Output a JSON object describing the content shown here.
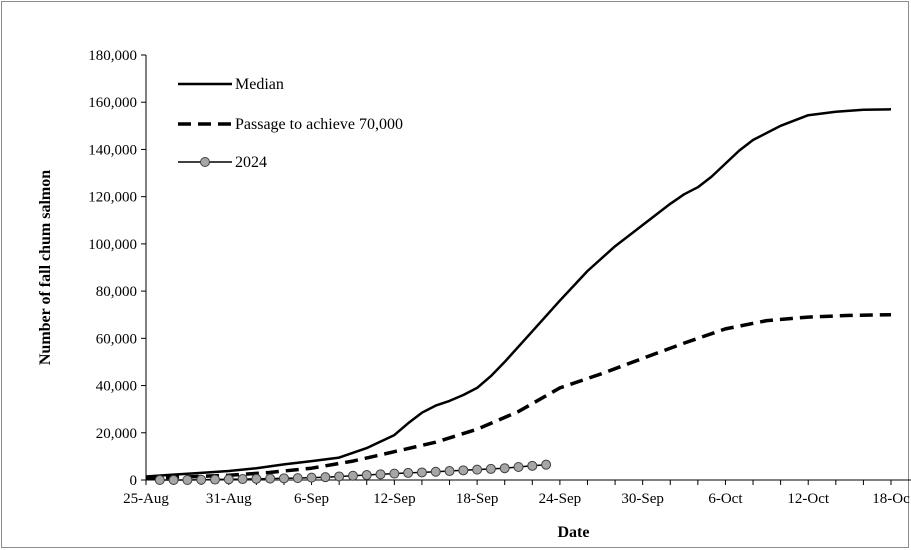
{
  "chart_data": {
    "type": "line",
    "title": "",
    "xlabel": "Date",
    "ylabel": "Number of fall chum salmon",
    "ylim": [
      0,
      180000
    ],
    "xlim": [
      "2024-08-25",
      "2024-10-18"
    ],
    "grid": false,
    "legend_position": "top-left",
    "x_ticks": [
      {
        "date": "2024-08-25",
        "label": "25-Aug"
      },
      {
        "date": "2024-08-31",
        "label": "31-Aug"
      },
      {
        "date": "2024-09-06",
        "label": "6-Sep"
      },
      {
        "date": "2024-09-12",
        "label": "12-Sep"
      },
      {
        "date": "2024-09-18",
        "label": "18-Sep"
      },
      {
        "date": "2024-09-24",
        "label": "24-Sep"
      },
      {
        "date": "2024-09-30",
        "label": "30-Sep"
      },
      {
        "date": "2024-10-06",
        "label": "6-Oct"
      },
      {
        "date": "2024-10-12",
        "label": "12-Oct"
      },
      {
        "date": "2024-10-18",
        "label": "18-Oc"
      }
    ],
    "y_ticks": [
      {
        "value": 0,
        "label": "0"
      },
      {
        "value": 20000,
        "label": "20,000"
      },
      {
        "value": 40000,
        "label": "40,000"
      },
      {
        "value": 60000,
        "label": "60,000"
      },
      {
        "value": 80000,
        "label": "80,000"
      },
      {
        "value": 100000,
        "label": "100,000"
      },
      {
        "value": 120000,
        "label": "120,000"
      },
      {
        "value": 140000,
        "label": "140,000"
      },
      {
        "value": 160000,
        "label": "160,000"
      },
      {
        "value": 180000,
        "label": "180,000"
      }
    ],
    "series": [
      {
        "name": "Median",
        "style": "solid",
        "color": "#000000",
        "points": [
          {
            "x": "2024-08-25",
            "y": 1500
          },
          {
            "x": "2024-08-27",
            "y": 2300
          },
          {
            "x": "2024-08-29",
            "y": 3000
          },
          {
            "x": "2024-08-31",
            "y": 3800
          },
          {
            "x": "2024-09-02",
            "y": 5000
          },
          {
            "x": "2024-09-04",
            "y": 6600
          },
          {
            "x": "2024-09-06",
            "y": 8000
          },
          {
            "x": "2024-09-08",
            "y": 9500
          },
          {
            "x": "2024-09-10",
            "y": 13500
          },
          {
            "x": "2024-09-12",
            "y": 19000
          },
          {
            "x": "2024-09-13",
            "y": 24000
          },
          {
            "x": "2024-09-14",
            "y": 28500
          },
          {
            "x": "2024-09-15",
            "y": 31500
          },
          {
            "x": "2024-09-16",
            "y": 33500
          },
          {
            "x": "2024-09-17",
            "y": 36000
          },
          {
            "x": "2024-09-18",
            "y": 39000
          },
          {
            "x": "2024-09-19",
            "y": 44000
          },
          {
            "x": "2024-09-20",
            "y": 50000
          },
          {
            "x": "2024-09-22",
            "y": 63000
          },
          {
            "x": "2024-09-24",
            "y": 76000
          },
          {
            "x": "2024-09-26",
            "y": 88500
          },
          {
            "x": "2024-09-28",
            "y": 99000
          },
          {
            "x": "2024-09-30",
            "y": 108000
          },
          {
            "x": "2024-10-02",
            "y": 117000
          },
          {
            "x": "2024-10-03",
            "y": 121000
          },
          {
            "x": "2024-10-04",
            "y": 124000
          },
          {
            "x": "2024-10-05",
            "y": 128500
          },
          {
            "x": "2024-10-06",
            "y": 134000
          },
          {
            "x": "2024-10-07",
            "y": 139500
          },
          {
            "x": "2024-10-08",
            "y": 144000
          },
          {
            "x": "2024-10-10",
            "y": 150000
          },
          {
            "x": "2024-10-12",
            "y": 154500
          },
          {
            "x": "2024-10-14",
            "y": 156000
          },
          {
            "x": "2024-10-16",
            "y": 156800
          },
          {
            "x": "2024-10-18",
            "y": 157000
          }
        ]
      },
      {
        "name": "Passage to achieve 70,000",
        "style": "dashed",
        "color": "#000000",
        "points": [
          {
            "x": "2024-08-25",
            "y": 700
          },
          {
            "x": "2024-08-28",
            "y": 1300
          },
          {
            "x": "2024-08-31",
            "y": 2000
          },
          {
            "x": "2024-09-03",
            "y": 3200
          },
          {
            "x": "2024-09-06",
            "y": 5000
          },
          {
            "x": "2024-09-09",
            "y": 8000
          },
          {
            "x": "2024-09-12",
            "y": 12000
          },
          {
            "x": "2024-09-15",
            "y": 16000
          },
          {
            "x": "2024-09-18",
            "y": 21500
          },
          {
            "x": "2024-09-21",
            "y": 29000
          },
          {
            "x": "2024-09-24",
            "y": 39000
          },
          {
            "x": "2024-09-27",
            "y": 45000
          },
          {
            "x": "2024-09-30",
            "y": 51500
          },
          {
            "x": "2024-10-03",
            "y": 58000
          },
          {
            "x": "2024-10-06",
            "y": 64000
          },
          {
            "x": "2024-10-09",
            "y": 67500
          },
          {
            "x": "2024-10-12",
            "y": 69000
          },
          {
            "x": "2024-10-15",
            "y": 69700
          },
          {
            "x": "2024-10-18",
            "y": 70000
          }
        ]
      },
      {
        "name": "2024",
        "style": "solid-markers",
        "color": "#000000",
        "marker_color": "#a6a6a6",
        "points": [
          {
            "x": "2024-08-26",
            "y": 0
          },
          {
            "x": "2024-08-27",
            "y": 0
          },
          {
            "x": "2024-08-28",
            "y": 0
          },
          {
            "x": "2024-08-29",
            "y": 100
          },
          {
            "x": "2024-08-30",
            "y": 200
          },
          {
            "x": "2024-08-31",
            "y": 300
          },
          {
            "x": "2024-09-01",
            "y": 400
          },
          {
            "x": "2024-09-02",
            "y": 500
          },
          {
            "x": "2024-09-03",
            "y": 600
          },
          {
            "x": "2024-09-04",
            "y": 700
          },
          {
            "x": "2024-09-05",
            "y": 800
          },
          {
            "x": "2024-09-06",
            "y": 1000
          },
          {
            "x": "2024-09-07",
            "y": 1200
          },
          {
            "x": "2024-09-08",
            "y": 1500
          },
          {
            "x": "2024-09-09",
            "y": 1800
          },
          {
            "x": "2024-09-10",
            "y": 2100
          },
          {
            "x": "2024-09-11",
            "y": 2400
          },
          {
            "x": "2024-09-12",
            "y": 2700
          },
          {
            "x": "2024-09-13",
            "y": 3000
          },
          {
            "x": "2024-09-14",
            "y": 3200
          },
          {
            "x": "2024-09-15",
            "y": 3500
          },
          {
            "x": "2024-09-16",
            "y": 3800
          },
          {
            "x": "2024-09-17",
            "y": 4100
          },
          {
            "x": "2024-09-18",
            "y": 4400
          },
          {
            "x": "2024-09-19",
            "y": 4700
          },
          {
            "x": "2024-09-20",
            "y": 5000
          },
          {
            "x": "2024-09-21",
            "y": 5500
          },
          {
            "x": "2024-09-22",
            "y": 6000
          },
          {
            "x": "2024-09-23",
            "y": 6500
          }
        ]
      }
    ]
  }
}
